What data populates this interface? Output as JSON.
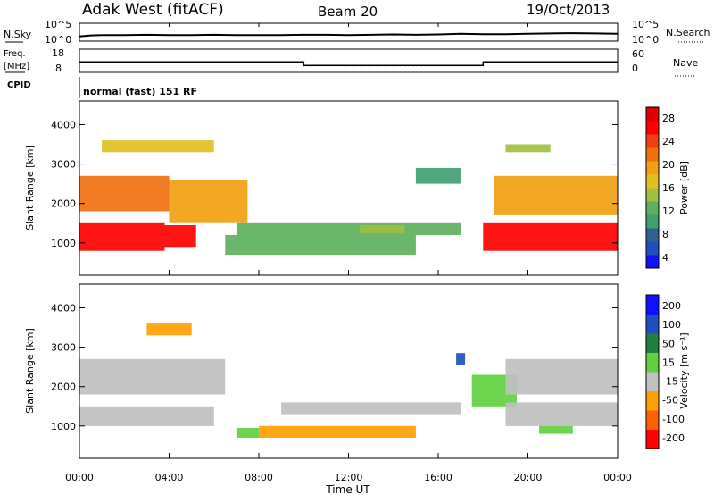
{
  "header": {
    "station": "Adak West (fitACF)",
    "beam": "Beam 20",
    "date": "19/Oct/2013"
  },
  "top_panels": {
    "nsky_label": "N.Sky",
    "nsky_ticks": [
      "10^5",
      "10^0"
    ],
    "nsearch_label": "N.Search",
    "nsearch_ticks": [
      "10^5",
      "10^0"
    ],
    "freq_label": "Freq.",
    "freq_unit": "[MHz]",
    "freq_ticks": [
      "18",
      "8"
    ],
    "nave_label": "Nave",
    "nave_ticks": [
      "60",
      "0"
    ],
    "cpid_label": "CPID",
    "cpid_text": "normal (fast) 151 RF"
  },
  "axes": {
    "xlabel": "Time UT",
    "xticks": [
      "00:00",
      "04:00",
      "08:00",
      "12:00",
      "16:00",
      "20:00",
      "00:00"
    ],
    "ylabel": "Slant Range [km]",
    "yticks": [
      "4000",
      "3000",
      "2000",
      "1000"
    ],
    "ylim": [
      180,
      4600
    ],
    "xlim_hours": [
      0,
      24
    ]
  },
  "colorbars": {
    "power": {
      "label": "Power [dB]",
      "ticks": [
        "28",
        "24",
        "20",
        "16",
        "12",
        "8",
        "4"
      ]
    },
    "velocity": {
      "label": "Velocity [m s⁻¹]",
      "ticks": [
        "200",
        "100",
        "50",
        "15",
        "-15",
        "-50",
        "-100",
        "-200"
      ]
    }
  },
  "colors": {
    "power_scale": [
      "#1010ff",
      "#2050c0",
      "#306090",
      "#40a070",
      "#60b060",
      "#a0c040",
      "#e0c020",
      "#f0a010",
      "#f07010",
      "#f04010",
      "#ff0000",
      "#e00000"
    ],
    "velocity_scale": [
      "#ff0000",
      "#ff6000",
      "#ffa000",
      "#c0c0c0",
      "#60d040",
      "#208040",
      "#2050c0",
      "#1010ff"
    ]
  },
  "chart_data": [
    {
      "type": "line",
      "title": "N.Sky / N.Search",
      "x_unit": "hours UT",
      "series": [
        {
          "name": "N.Sky",
          "x": [
            0,
            0.5,
            1,
            2,
            3,
            4,
            5,
            6,
            7,
            8,
            9,
            10,
            11,
            12,
            13,
            14,
            15,
            16,
            17,
            18,
            19,
            20,
            21,
            22,
            23,
            24
          ],
          "log10_values": [
            1.2,
            1.5,
            1.6,
            1.6,
            1.7,
            1.6,
            1.6,
            1.7,
            1.6,
            1.6,
            1.6,
            1.7,
            1.7,
            1.6,
            1.7,
            1.8,
            1.7,
            1.8,
            2.0,
            1.9,
            1.9,
            2.0,
            2.1,
            2.2,
            2.1,
            2.0
          ]
        }
      ]
    },
    {
      "type": "line",
      "title": "Freq. / Nave",
      "series": [
        {
          "name": "Freq.",
          "x": [
            0,
            10,
            10,
            18,
            18,
            24
          ],
          "values": [
            12.5,
            12.5,
            10.8,
            10.8,
            12.5,
            12.5
          ]
        },
        {
          "name": "Nave",
          "x": [
            0,
            10,
            10,
            18,
            18,
            24
          ],
          "values": [
            26,
            26,
            16,
            16,
            26,
            26
          ]
        }
      ]
    },
    {
      "type": "heatmap",
      "title": "Power [dB]",
      "x_unit": "hours UT",
      "y_unit": "km",
      "regions": [
        {
          "t": [
            0.0,
            3.8
          ],
          "r": [
            800,
            1500
          ],
          "value": 28
        },
        {
          "t": [
            3.8,
            5.2
          ],
          "r": [
            900,
            1450
          ],
          "value": 26
        },
        {
          "t": [
            0.0,
            4.0
          ],
          "r": [
            1800,
            2700
          ],
          "value": 22
        },
        {
          "t": [
            4.0,
            7.5
          ],
          "r": [
            1500,
            2600
          ],
          "value": 18
        },
        {
          "t": [
            7.0,
            17.0
          ],
          "r": [
            1200,
            1500
          ],
          "value": 10
        },
        {
          "t": [
            6.5,
            15.0
          ],
          "r": [
            700,
            1200
          ],
          "value": 10
        },
        {
          "t": [
            12.5,
            14.5
          ],
          "r": [
            1250,
            1450
          ],
          "value": 14
        },
        {
          "t": [
            18.0,
            24.0
          ],
          "r": [
            800,
            1500
          ],
          "value": 28
        },
        {
          "t": [
            18.5,
            24.0
          ],
          "r": [
            1700,
            2700
          ],
          "value": 20
        },
        {
          "t": [
            1.0,
            6.0
          ],
          "r": [
            3300,
            3600
          ],
          "value": 16
        },
        {
          "t": [
            15.0,
            17.0
          ],
          "r": [
            2500,
            2900
          ],
          "value": 8
        },
        {
          "t": [
            19.0,
            21.0
          ],
          "r": [
            3300,
            3500
          ],
          "value": 14
        }
      ]
    },
    {
      "type": "heatmap",
      "title": "Velocity [m s⁻¹]",
      "x_unit": "hours UT",
      "y_unit": "km",
      "regions": [
        {
          "t": [
            0.0,
            6.0
          ],
          "r": [
            1000,
            1500
          ],
          "value": 0
        },
        {
          "t": [
            0.0,
            6.5
          ],
          "r": [
            1800,
            2700
          ],
          "value": 0
        },
        {
          "t": [
            7.0,
            8.0
          ],
          "r": [
            700,
            950
          ],
          "value": 40
        },
        {
          "t": [
            8.0,
            15.0
          ],
          "r": [
            700,
            1000
          ],
          "value": -40
        },
        {
          "t": [
            9.0,
            17.0
          ],
          "r": [
            1300,
            1600
          ],
          "value": 0
        },
        {
          "t": [
            16.8,
            17.2
          ],
          "r": [
            2550,
            2850
          ],
          "value": 200
        },
        {
          "t": [
            17.5,
            19.5
          ],
          "r": [
            1500,
            2300
          ],
          "value": 40
        },
        {
          "t": [
            19.0,
            24.0
          ],
          "r": [
            1000,
            1600
          ],
          "value": 0
        },
        {
          "t": [
            19.0,
            24.0
          ],
          "r": [
            1800,
            2700
          ],
          "value": 0
        },
        {
          "t": [
            20.5,
            22.0
          ],
          "r": [
            800,
            1000
          ],
          "value": 40
        },
        {
          "t": [
            3.0,
            5.0
          ],
          "r": [
            3300,
            3600
          ],
          "value": -50
        }
      ]
    }
  ]
}
